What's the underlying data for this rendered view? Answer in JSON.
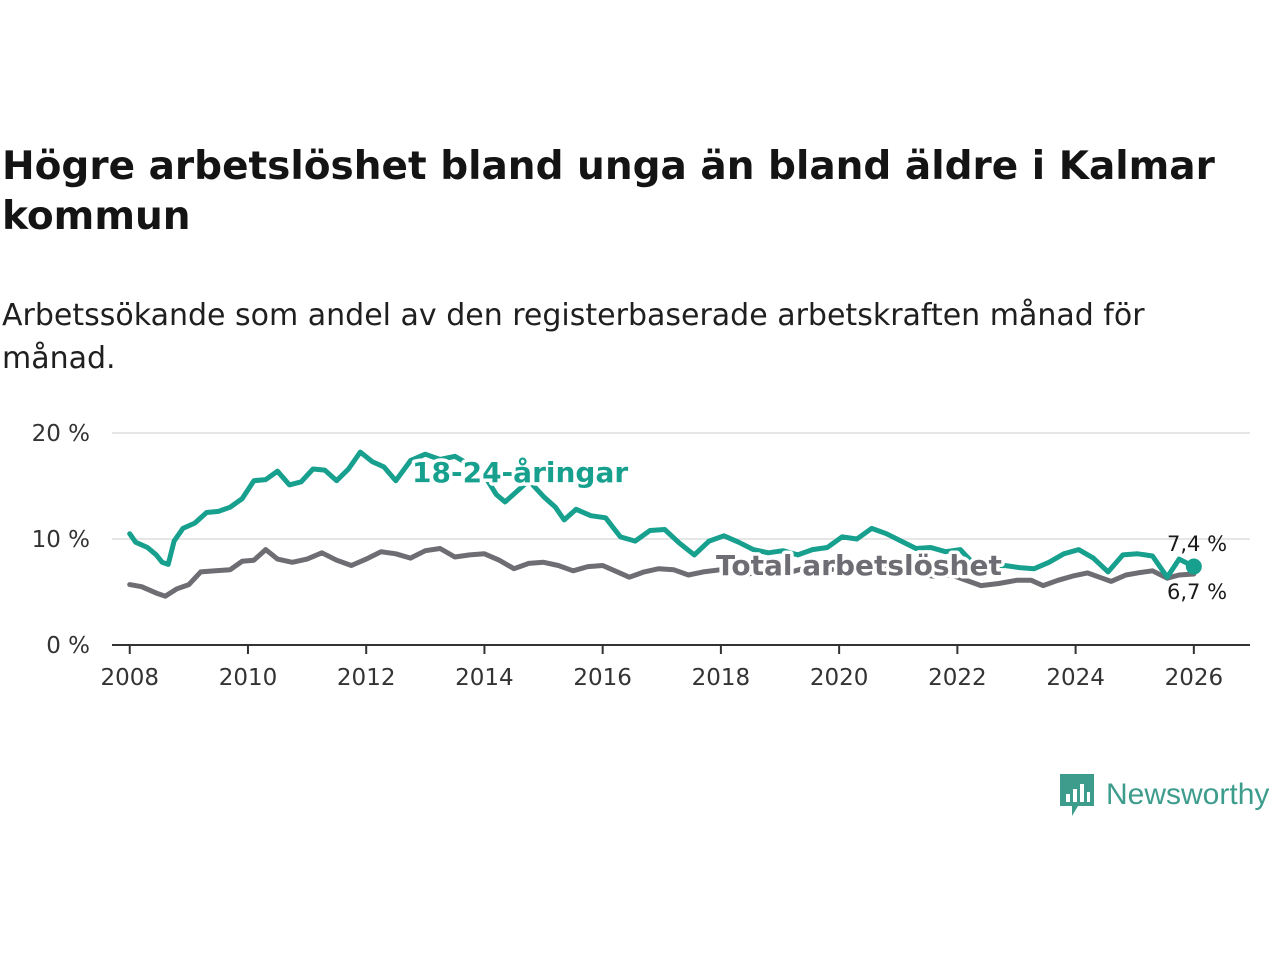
{
  "title": "Högre arbetslöshet bland unga än bland äldre i Kalmar kommun",
  "subtitle": "Arbetssökande som andel av den registerbaserade arbetskraften månad för månad.",
  "logo_text": "Newsworthy",
  "colors": {
    "young": "#17a08e",
    "total": "#6d6d73",
    "grid": "#dddddd",
    "axis": "#333333"
  },
  "chart_data": {
    "type": "line",
    "title": "Högre arbetslöshet bland unga än bland äldre i Kalmar kommun",
    "xlabel": "",
    "ylabel": "",
    "xlim": [
      2007.7,
      2026.95
    ],
    "ylim": [
      0,
      20
    ],
    "y_ticks": [
      0,
      10,
      20
    ],
    "y_tick_labels": [
      "0 %",
      "10 %",
      "20 %"
    ],
    "x_ticks": [
      2008,
      2010,
      2012,
      2014,
      2016,
      2018,
      2020,
      2022,
      2024,
      2026
    ],
    "x_tick_labels": [
      "2008",
      "2010",
      "2012",
      "2014",
      "2016",
      "2018",
      "2020",
      "2022",
      "2024",
      "2026"
    ],
    "series": [
      {
        "name": "18-24-åringar",
        "label": "18-24-åringar",
        "color": "#17a08e",
        "end_label": "7,4 %",
        "points": [
          [
            2008.0,
            10.5
          ],
          [
            2008.1,
            9.7
          ],
          [
            2008.3,
            9.2
          ],
          [
            2008.45,
            8.5
          ],
          [
            2008.55,
            7.8
          ],
          [
            2008.65,
            7.6
          ],
          [
            2008.75,
            9.8
          ],
          [
            2008.9,
            11.0
          ],
          [
            2009.1,
            11.5
          ],
          [
            2009.3,
            12.5
          ],
          [
            2009.5,
            12.6
          ],
          [
            2009.7,
            13.0
          ],
          [
            2009.9,
            13.8
          ],
          [
            2010.1,
            15.5
          ],
          [
            2010.3,
            15.6
          ],
          [
            2010.5,
            16.4
          ],
          [
            2010.7,
            15.1
          ],
          [
            2010.9,
            15.4
          ],
          [
            2011.1,
            16.6
          ],
          [
            2011.3,
            16.5
          ],
          [
            2011.5,
            15.5
          ],
          [
            2011.7,
            16.6
          ],
          [
            2011.9,
            18.2
          ],
          [
            2012.1,
            17.3
          ],
          [
            2012.3,
            16.8
          ],
          [
            2012.5,
            15.5
          ],
          [
            2012.75,
            17.4
          ],
          [
            2013.0,
            18.0
          ],
          [
            2013.25,
            17.5
          ],
          [
            2013.5,
            17.8
          ],
          [
            2013.75,
            17.0
          ],
          [
            2014.0,
            16.0
          ],
          [
            2014.2,
            14.2
          ],
          [
            2014.35,
            13.5
          ],
          [
            2014.55,
            14.5
          ],
          [
            2014.75,
            15.5
          ],
          [
            2015.0,
            14.0
          ],
          [
            2015.2,
            13.0
          ],
          [
            2015.35,
            11.8
          ],
          [
            2015.55,
            12.8
          ],
          [
            2015.8,
            12.2
          ],
          [
            2016.05,
            12.0
          ],
          [
            2016.3,
            10.2
          ],
          [
            2016.55,
            9.8
          ],
          [
            2016.8,
            10.8
          ],
          [
            2017.05,
            10.9
          ],
          [
            2017.3,
            9.6
          ],
          [
            2017.55,
            8.5
          ],
          [
            2017.8,
            9.8
          ],
          [
            2018.05,
            10.3
          ],
          [
            2018.3,
            9.7
          ],
          [
            2018.55,
            9.0
          ],
          [
            2018.8,
            8.7
          ],
          [
            2019.05,
            8.9
          ],
          [
            2019.3,
            8.5
          ],
          [
            2019.55,
            9.0
          ],
          [
            2019.8,
            9.2
          ],
          [
            2020.05,
            10.2
          ],
          [
            2020.3,
            10.0
          ],
          [
            2020.55,
            11.0
          ],
          [
            2020.8,
            10.5
          ],
          [
            2021.05,
            9.8
          ],
          [
            2021.3,
            9.1
          ],
          [
            2021.55,
            9.2
          ],
          [
            2021.8,
            8.8
          ],
          [
            2022.05,
            9.0
          ],
          [
            2022.3,
            7.5
          ],
          [
            2022.55,
            7.4
          ],
          [
            2022.8,
            7.5
          ],
          [
            2023.05,
            7.3
          ],
          [
            2023.3,
            7.2
          ],
          [
            2023.55,
            7.8
          ],
          [
            2023.8,
            8.6
          ],
          [
            2024.05,
            9.0
          ],
          [
            2024.3,
            8.2
          ],
          [
            2024.55,
            6.9
          ],
          [
            2024.8,
            8.5
          ],
          [
            2025.05,
            8.6
          ],
          [
            2025.3,
            8.4
          ],
          [
            2025.55,
            6.4
          ],
          [
            2025.75,
            8.1
          ],
          [
            2026.0,
            7.4
          ]
        ]
      },
      {
        "name": "Total arbetslöshet",
        "label": "Total arbetslöshet",
        "color": "#6d6d73",
        "end_label": "6,7 %",
        "points": [
          [
            2008.0,
            5.7
          ],
          [
            2008.2,
            5.5
          ],
          [
            2008.45,
            4.9
          ],
          [
            2008.6,
            4.6
          ],
          [
            2008.8,
            5.3
          ],
          [
            2009.0,
            5.7
          ],
          [
            2009.2,
            6.9
          ],
          [
            2009.45,
            7.0
          ],
          [
            2009.7,
            7.1
          ],
          [
            2009.9,
            7.9
          ],
          [
            2010.1,
            8.0
          ],
          [
            2010.3,
            9.0
          ],
          [
            2010.5,
            8.1
          ],
          [
            2010.75,
            7.8
          ],
          [
            2011.0,
            8.1
          ],
          [
            2011.25,
            8.7
          ],
          [
            2011.5,
            8.0
          ],
          [
            2011.75,
            7.5
          ],
          [
            2012.0,
            8.1
          ],
          [
            2012.25,
            8.8
          ],
          [
            2012.5,
            8.6
          ],
          [
            2012.75,
            8.2
          ],
          [
            2013.0,
            8.9
          ],
          [
            2013.25,
            9.1
          ],
          [
            2013.5,
            8.3
          ],
          [
            2013.75,
            8.5
          ],
          [
            2014.0,
            8.6
          ],
          [
            2014.25,
            8.0
          ],
          [
            2014.5,
            7.2
          ],
          [
            2014.75,
            7.7
          ],
          [
            2015.0,
            7.8
          ],
          [
            2015.25,
            7.5
          ],
          [
            2015.5,
            7.0
          ],
          [
            2015.75,
            7.4
          ],
          [
            2016.0,
            7.5
          ],
          [
            2016.25,
            6.9
          ],
          [
            2016.45,
            6.4
          ],
          [
            2016.7,
            6.9
          ],
          [
            2016.95,
            7.2
          ],
          [
            2017.2,
            7.1
          ],
          [
            2017.45,
            6.6
          ],
          [
            2017.7,
            6.9
          ],
          [
            2018.0,
            7.1
          ],
          [
            2018.3,
            6.6
          ],
          [
            2018.6,
            6.8
          ],
          [
            2018.9,
            6.6
          ],
          [
            2019.2,
            6.9
          ],
          [
            2019.5,
            7.4
          ],
          [
            2019.8,
            7.0
          ],
          [
            2020.1,
            7.5
          ],
          [
            2020.4,
            7.3
          ],
          [
            2020.7,
            7.2
          ],
          [
            2021.0,
            7.3
          ],
          [
            2021.3,
            6.7
          ],
          [
            2021.6,
            6.5
          ],
          [
            2021.9,
            6.6
          ],
          [
            2022.2,
            6.0
          ],
          [
            2022.4,
            5.6
          ],
          [
            2022.7,
            5.8
          ],
          [
            2023.0,
            6.1
          ],
          [
            2023.25,
            6.1
          ],
          [
            2023.45,
            5.6
          ],
          [
            2023.7,
            6.1
          ],
          [
            2023.95,
            6.5
          ],
          [
            2024.2,
            6.8
          ],
          [
            2024.45,
            6.3
          ],
          [
            2024.6,
            6.0
          ],
          [
            2024.85,
            6.6
          ],
          [
            2025.05,
            6.8
          ],
          [
            2025.3,
            7.0
          ],
          [
            2025.55,
            6.3
          ],
          [
            2025.75,
            6.6
          ],
          [
            2026.0,
            6.7
          ]
        ]
      }
    ]
  }
}
